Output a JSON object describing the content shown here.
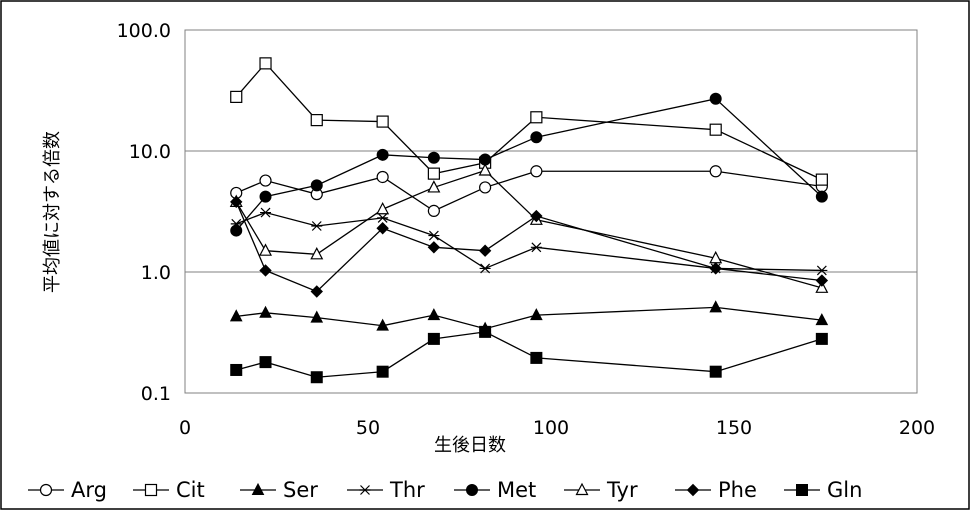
{
  "chart_data": {
    "type": "line",
    "xlabel": "生後日数",
    "ylabel": "平均値に対する倍数",
    "xlim": [
      0,
      200
    ],
    "ylim": [
      0.1,
      100
    ],
    "y_scale": "log",
    "x_ticks": [
      0,
      50,
      100,
      150,
      200
    ],
    "x_tick_labels": [
      "0",
      "50",
      "100",
      "150",
      "200"
    ],
    "y_ticks": [
      0.1,
      1,
      10,
      100
    ],
    "y_tick_labels": [
      "0.1",
      "1.0",
      "10.0",
      "100.0"
    ],
    "grid": "horizontal",
    "legend_position": "bottom",
    "x": [
      14,
      22,
      36,
      54,
      68,
      82,
      96,
      145,
      174
    ],
    "series": [
      {
        "name": "Arg",
        "marker": "circle-open",
        "values": [
          4.5,
          5.7,
          4.4,
          6.1,
          3.2,
          5.0,
          6.8,
          6.8,
          5.1
        ]
      },
      {
        "name": "Cit",
        "marker": "square-open",
        "values": [
          28,
          53,
          18,
          17.5,
          6.5,
          8.0,
          19,
          15,
          5.8
        ]
      },
      {
        "name": "Ser",
        "marker": "triangle-filled",
        "values": [
          0.43,
          0.46,
          0.42,
          0.36,
          0.44,
          0.34,
          0.44,
          0.51,
          0.4
        ]
      },
      {
        "name": "Thr",
        "marker": "star",
        "values": [
          2.5,
          3.1,
          2.4,
          2.8,
          2.0,
          1.07,
          1.6,
          1.07,
          1.03
        ]
      },
      {
        "name": "Met",
        "marker": "circle-filled",
        "values": [
          2.2,
          4.2,
          5.2,
          9.3,
          8.8,
          8.5,
          13,
          27,
          4.2
        ]
      },
      {
        "name": "Tyr",
        "marker": "triangle-open",
        "values": [
          3.8,
          1.5,
          1.4,
          3.3,
          5.0,
          6.9,
          2.7,
          1.3,
          0.74
        ]
      },
      {
        "name": "Phe",
        "marker": "diamond-filled",
        "values": [
          3.8,
          1.03,
          0.69,
          2.3,
          1.6,
          1.5,
          2.9,
          1.07,
          0.85
        ]
      },
      {
        "name": "Gln",
        "marker": "square-filled",
        "values": [
          0.155,
          0.18,
          0.135,
          0.15,
          0.28,
          0.32,
          0.195,
          0.15,
          0.28
        ]
      }
    ]
  }
}
